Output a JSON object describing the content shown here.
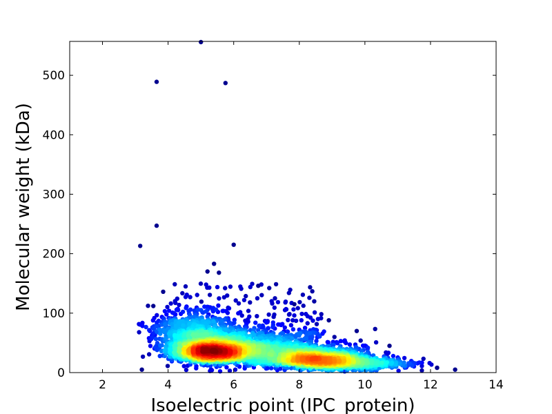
{
  "chart_data": {
    "type": "scatter",
    "title": "",
    "xlabel": "Isoelectric point (IPC_protein)",
    "ylabel": "Molecular weight (kDa)",
    "xlim": [
      1,
      14
    ],
    "ylim": [
      0,
      557
    ],
    "xticks": [
      2,
      4,
      6,
      8,
      10,
      12,
      14
    ],
    "xtick_labels": [
      "2",
      "4",
      "6",
      "8",
      "10",
      "12",
      "14"
    ],
    "yticks": [
      0,
      100,
      200,
      300,
      400,
      500
    ],
    "ytick_labels": [
      "0",
      "100",
      "200",
      "300",
      "400",
      "500"
    ],
    "grid": false,
    "legend": "none",
    "colormap": "jet (point density)",
    "colors": {
      "low_density": "#00008f",
      "mid_density": "#00ffff",
      "high_density": "#800000"
    },
    "outlier_points": [
      {
        "x": 5.0,
        "y": 557
      },
      {
        "x": 3.65,
        "y": 489
      },
      {
        "x": 5.75,
        "y": 487
      },
      {
        "x": 3.65,
        "y": 247
      },
      {
        "x": 3.15,
        "y": 213
      },
      {
        "x": 6.0,
        "y": 215
      },
      {
        "x": 5.4,
        "y": 183
      },
      {
        "x": 5.55,
        "y": 168
      },
      {
        "x": 5.2,
        "y": 170
      },
      {
        "x": 6.75,
        "y": 146
      },
      {
        "x": 3.55,
        "y": 112
      },
      {
        "x": 3.85,
        "y": 136
      },
      {
        "x": 7.85,
        "y": 115
      },
      {
        "x": 8.9,
        "y": 88
      },
      {
        "x": 9.75,
        "y": 70
      },
      {
        "x": 10.75,
        "y": 45
      },
      {
        "x": 12.75,
        "y": 5
      },
      {
        "x": 12.2,
        "y": 8
      },
      {
        "x": 3.2,
        "y": 5
      }
    ],
    "density_clusters": [
      {
        "center_x": 5.3,
        "center_y": 30,
        "spread_x": 0.55,
        "spread_y": 14,
        "count": 1600,
        "peak_density": 1.0
      },
      {
        "center_x": 4.8,
        "center_y": 55,
        "spread_x": 0.7,
        "spread_y": 28,
        "count": 700,
        "peak_density": 0.35
      },
      {
        "center_x": 6.5,
        "center_y": 35,
        "spread_x": 0.9,
        "spread_y": 20,
        "count": 700,
        "peak_density": 0.3
      },
      {
        "center_x": 8.6,
        "center_y": 18,
        "spread_x": 0.75,
        "spread_y": 11,
        "count": 1100,
        "peak_density": 0.5
      },
      {
        "center_x": 9.8,
        "center_y": 12,
        "spread_x": 0.9,
        "spread_y": 8,
        "count": 350,
        "peak_density": 0.15
      },
      {
        "center_x": 7.5,
        "center_y": 25,
        "spread_x": 1.2,
        "spread_y": 18,
        "count": 700,
        "peak_density": 0.2
      }
    ]
  }
}
